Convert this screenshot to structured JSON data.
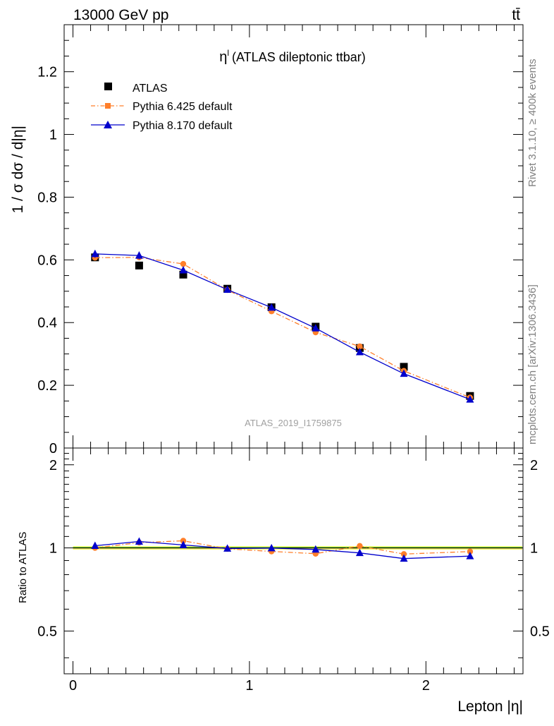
{
  "header": {
    "energy_label": "13000 GeV pp",
    "process_label": "tt̄"
  },
  "side_labels": {
    "rivet": "Rivet 3.1.10, ≥ 400k events",
    "mcplots": "mcplots.cern.ch [arXiv:1306.3436]"
  },
  "watermark": "ATLAS_2019_I1759875",
  "chart_data": [
    {
      "type": "scatter",
      "title": "η^l (ATLAS dileptonic ttbar)",
      "title_main": "η",
      "title_sup": "l",
      "title_rest": "(ATLAS dileptonic ttbar)",
      "ylabel": "1 / σ  dσ / d|η|",
      "xlim": [
        -0.05,
        2.55
      ],
      "ylim": [
        0,
        1.35
      ],
      "yticks": [
        0,
        0.2,
        0.4,
        0.6,
        0.8,
        1,
        1.2
      ],
      "ytick_labels": [
        "0",
        "0.2",
        "0.4",
        "0.6",
        "0.8",
        "1",
        "1.2"
      ],
      "legend_position": "top-left",
      "series": [
        {
          "name": "ATLAS",
          "style": "marker-square",
          "color": "#000000",
          "x": [
            0.125,
            0.375,
            0.625,
            0.875,
            1.125,
            1.375,
            1.625,
            1.875,
            2.25
          ],
          "y": [
            0.608,
            0.582,
            0.553,
            0.508,
            0.449,
            0.387,
            0.319,
            0.259,
            0.166
          ]
        },
        {
          "name": "Pythia 6.425 default",
          "style": "dashdot-circle",
          "color": "#ff7f2a",
          "x": [
            0.125,
            0.375,
            0.625,
            0.875,
            1.125,
            1.375,
            1.625,
            1.875,
            2.25
          ],
          "y": [
            0.607,
            0.608,
            0.587,
            0.504,
            0.436,
            0.369,
            0.324,
            0.246,
            0.161
          ]
        },
        {
          "name": "Pythia 8.170 default",
          "style": "solid-triangle",
          "color": "#0000cc",
          "x": [
            0.125,
            0.375,
            0.625,
            0.875,
            1.125,
            1.375,
            1.625,
            1.875,
            2.25
          ],
          "y": [
            0.619,
            0.614,
            0.567,
            0.505,
            0.448,
            0.382,
            0.306,
            0.237,
            0.155
          ],
          "yerr": [
            0.012,
            0.012,
            0.008,
            0.006,
            0.006,
            0.006,
            0.005,
            0.005,
            0.004
          ]
        }
      ]
    },
    {
      "type": "scatter",
      "ylabel": "Ratio to ATLAS",
      "xlabel": "Lepton |η|",
      "xlim": [
        -0.05,
        2.55
      ],
      "ylim": [
        0.35,
        2.3
      ],
      "yticks": [
        0.5,
        1,
        2
      ],
      "ytick_labels": [
        "0.5",
        "1",
        "2"
      ],
      "xticks": [
        0,
        1,
        2
      ],
      "xtick_labels": [
        "0",
        "1",
        "2"
      ],
      "reference_line": 1,
      "uncertainty_band": [
        0.985,
        1.015
      ],
      "series": [
        {
          "name": "Pythia 6.425 default",
          "style": "dashdot-circle",
          "color": "#ff7f2a",
          "x": [
            0.125,
            0.375,
            0.625,
            0.875,
            1.125,
            1.375,
            1.625,
            1.875,
            2.25
          ],
          "y": [
            1.0,
            1.045,
            1.061,
            0.992,
            0.971,
            0.953,
            1.016,
            0.95,
            0.97
          ]
        },
        {
          "name": "Pythia 8.170 default",
          "style": "solid-triangle",
          "color": "#0000cc",
          "x": [
            0.125,
            0.375,
            0.625,
            0.875,
            1.125,
            1.375,
            1.625,
            1.875,
            2.25
          ],
          "y": [
            1.018,
            1.055,
            1.025,
            0.995,
            0.998,
            0.987,
            0.959,
            0.915,
            0.934
          ]
        }
      ]
    }
  ]
}
